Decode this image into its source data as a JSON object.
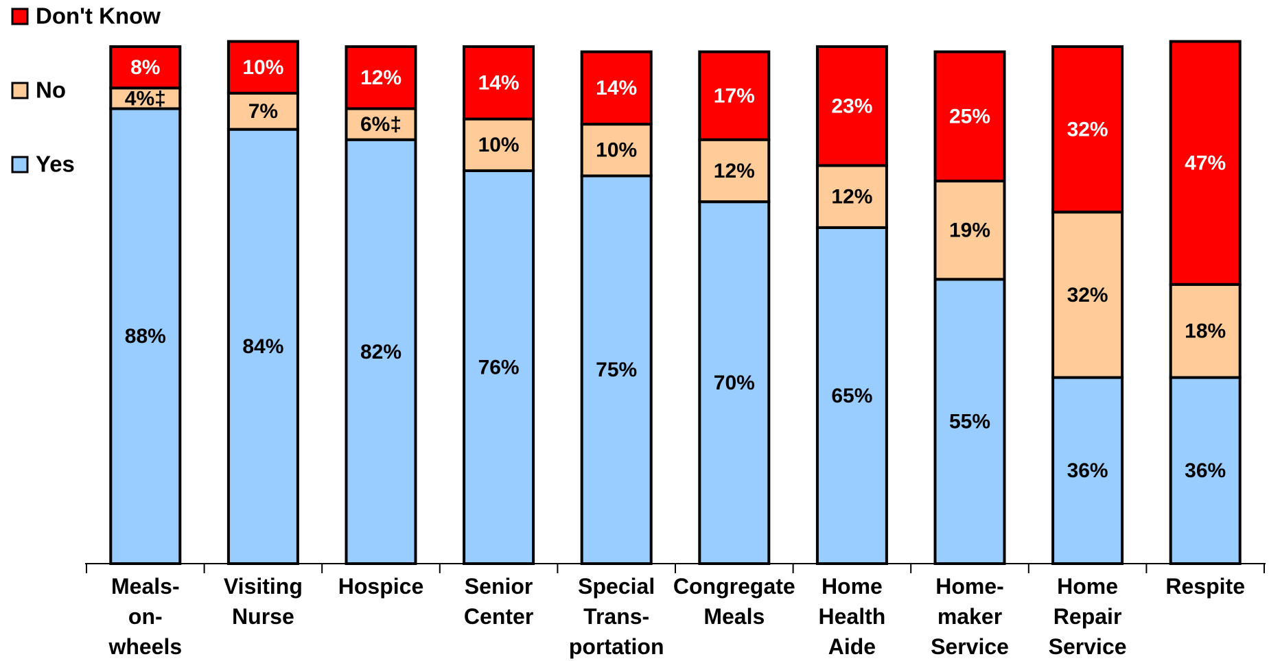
{
  "chart_data": {
    "type": "stacked_bar",
    "categories": [
      "Meals-\non-\nwheels",
      "Visiting\nNurse",
      "Hospice",
      "Senior\nCenter",
      "Special\nTrans-\nportation",
      "Congregate\nMeals",
      "Home\nHealth\nAide",
      "Home-\nmaker\nService",
      "Home\nRepair\nService",
      "Respite"
    ],
    "series": [
      {
        "name": "Yes",
        "color": "#99ccff",
        "values": [
          88,
          84,
          82,
          76,
          75,
          70,
          65,
          55,
          36,
          36
        ],
        "value_labels": [
          "88%",
          "84%",
          "82%",
          "76%",
          "75%",
          "70%",
          "65%",
          "55%",
          "36%",
          "36%"
        ]
      },
      {
        "name": "No",
        "color": "#ffcc99",
        "values": [
          4,
          7,
          6,
          10,
          10,
          12,
          12,
          19,
          32,
          18
        ],
        "value_labels": [
          "4%‡",
          "7%",
          "6%‡",
          "10%",
          "10%",
          "12%",
          "12%",
          "19%",
          "32%",
          "18%"
        ]
      },
      {
        "name": "Don't Know",
        "color": "#ff0000",
        "values": [
          8,
          10,
          12,
          14,
          14,
          17,
          23,
          25,
          32,
          47
        ],
        "value_labels": [
          "8%",
          "10%",
          "12%",
          "14%",
          "14%",
          "17%",
          "23%",
          "25%",
          "32%",
          "47%"
        ]
      }
    ],
    "ylim": [
      0,
      100
    ],
    "legend": "upper left"
  }
}
